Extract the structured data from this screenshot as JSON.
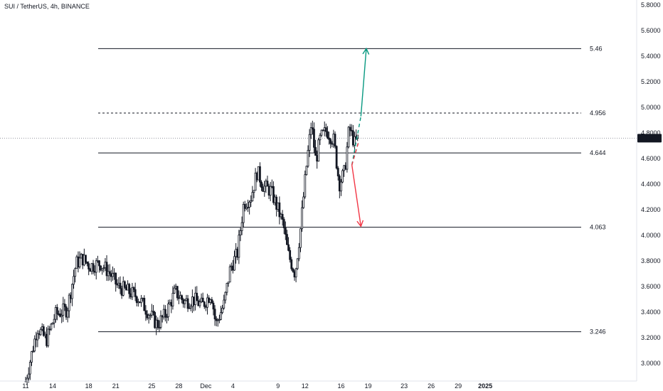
{
  "header": {
    "title": "SUI / TetherUS, 4h, BINANCE"
  },
  "chart_data": {
    "type": "candlestick",
    "symbol": "SUI / TetherUS",
    "interval": "4h",
    "exchange": "BINANCE",
    "ylim": [
      2.86,
      5.84
    ],
    "y_ticks": [
      "5.8000",
      "5.6000",
      "5.4000",
      "5.2000",
      "5.0000",
      "4.8000",
      "4.6000",
      "4.4000",
      "4.2000",
      "4.0000",
      "3.8000",
      "3.6000",
      "3.4000",
      "3.2000",
      "3.0000"
    ],
    "y_tick_values": [
      5.8,
      5.6,
      5.4,
      5.2,
      5.0,
      4.8,
      4.6,
      4.4,
      4.2,
      4.0,
      3.8,
      3.6,
      3.4,
      3.2,
      3.0
    ],
    "x_ticks": [
      {
        "label": "11",
        "t": 0
      },
      {
        "label": "14",
        "t": 3
      },
      {
        "label": "18",
        "t": 7
      },
      {
        "label": "21",
        "t": 10
      },
      {
        "label": "25",
        "t": 14
      },
      {
        "label": "28",
        "t": 17
      },
      {
        "label": "Dec",
        "t": 20
      },
      {
        "label": "4",
        "t": 23
      },
      {
        "label": "9",
        "t": 28
      },
      {
        "label": "12",
        "t": 31
      },
      {
        "label": "16",
        "t": 35
      },
      {
        "label": "19",
        "t": 38
      },
      {
        "label": "23",
        "t": 42
      },
      {
        "label": "26",
        "t": 45
      },
      {
        "label": "29",
        "t": 48
      },
      {
        "label": "2025",
        "t": 51
      }
    ],
    "current_price": {
      "label": "4.7592",
      "value": 4.7592
    },
    "levels": [
      {
        "label": "5.46",
        "value": 5.46,
        "style": "solid"
      },
      {
        "label": "4.956",
        "value": 4.956,
        "style": "dashed"
      },
      {
        "label": "4.644",
        "value": 4.644,
        "style": "solid"
      },
      {
        "label": "4.063",
        "value": 4.063,
        "style": "solid"
      },
      {
        "label": "3.246",
        "value": 3.246,
        "style": "solid"
      }
    ],
    "projections": [
      {
        "name": "bullish-path",
        "color": "#089981",
        "points": [
          [
            36.9,
            4.72
          ],
          [
            36.2,
            4.55
          ],
          [
            37.2,
            4.93
          ],
          [
            37.8,
            5.46
          ]
        ]
      },
      {
        "name": "bearish-path",
        "color": "#f23645",
        "points": [
          [
            36.9,
            4.72
          ],
          [
            36.2,
            4.55
          ],
          [
            37.2,
            4.07
          ]
        ]
      }
    ],
    "anchors": [
      {
        "t": 0.0,
        "p": 2.86
      },
      {
        "t": 0.6,
        "p": 3.05
      },
      {
        "t": 1.3,
        "p": 3.28
      },
      {
        "t": 2.3,
        "p": 3.18
      },
      {
        "t": 3.3,
        "p": 3.38
      },
      {
        "t": 4.6,
        "p": 3.42
      },
      {
        "t": 5.6,
        "p": 3.78
      },
      {
        "t": 6.3,
        "p": 3.82
      },
      {
        "t": 7.1,
        "p": 3.76
      },
      {
        "t": 8.3,
        "p": 3.78
      },
      {
        "t": 9.4,
        "p": 3.7
      },
      {
        "t": 10.2,
        "p": 3.6
      },
      {
        "t": 11.4,
        "p": 3.56
      },
      {
        "t": 12.4,
        "p": 3.52
      },
      {
        "t": 13.6,
        "p": 3.4
      },
      {
        "t": 14.6,
        "p": 3.3
      },
      {
        "t": 15.5,
        "p": 3.38
      },
      {
        "t": 16.6,
        "p": 3.56
      },
      {
        "t": 17.6,
        "p": 3.48
      },
      {
        "t": 18.6,
        "p": 3.5
      },
      {
        "t": 19.6,
        "p": 3.45
      },
      {
        "t": 20.6,
        "p": 3.55
      },
      {
        "t": 21.1,
        "p": 3.3
      },
      {
        "t": 22.0,
        "p": 3.46
      },
      {
        "t": 22.7,
        "p": 3.74
      },
      {
        "t": 23.5,
        "p": 3.86
      },
      {
        "t": 24.2,
        "p": 4.25
      },
      {
        "t": 25.0,
        "p": 4.3
      },
      {
        "t": 25.7,
        "p": 4.5
      },
      {
        "t": 26.4,
        "p": 4.38
      },
      {
        "t": 27.2,
        "p": 4.35
      },
      {
        "t": 27.9,
        "p": 4.22
      },
      {
        "t": 28.6,
        "p": 4.08
      },
      {
        "t": 29.1,
        "p": 3.86
      },
      {
        "t": 29.9,
        "p": 3.7
      },
      {
        "t": 30.5,
        "p": 4.05
      },
      {
        "t": 31.1,
        "p": 4.5
      },
      {
        "t": 31.7,
        "p": 4.88
      },
      {
        "t": 32.2,
        "p": 4.58
      },
      {
        "t": 32.7,
        "p": 4.76
      },
      {
        "t": 33.4,
        "p": 4.82
      },
      {
        "t": 34.2,
        "p": 4.74
      },
      {
        "t": 34.8,
        "p": 4.4
      },
      {
        "t": 35.4,
        "p": 4.5
      },
      {
        "t": 35.9,
        "p": 4.84
      },
      {
        "t": 36.5,
        "p": 4.72
      },
      {
        "t": 36.9,
        "p": 4.76
      }
    ]
  }
}
